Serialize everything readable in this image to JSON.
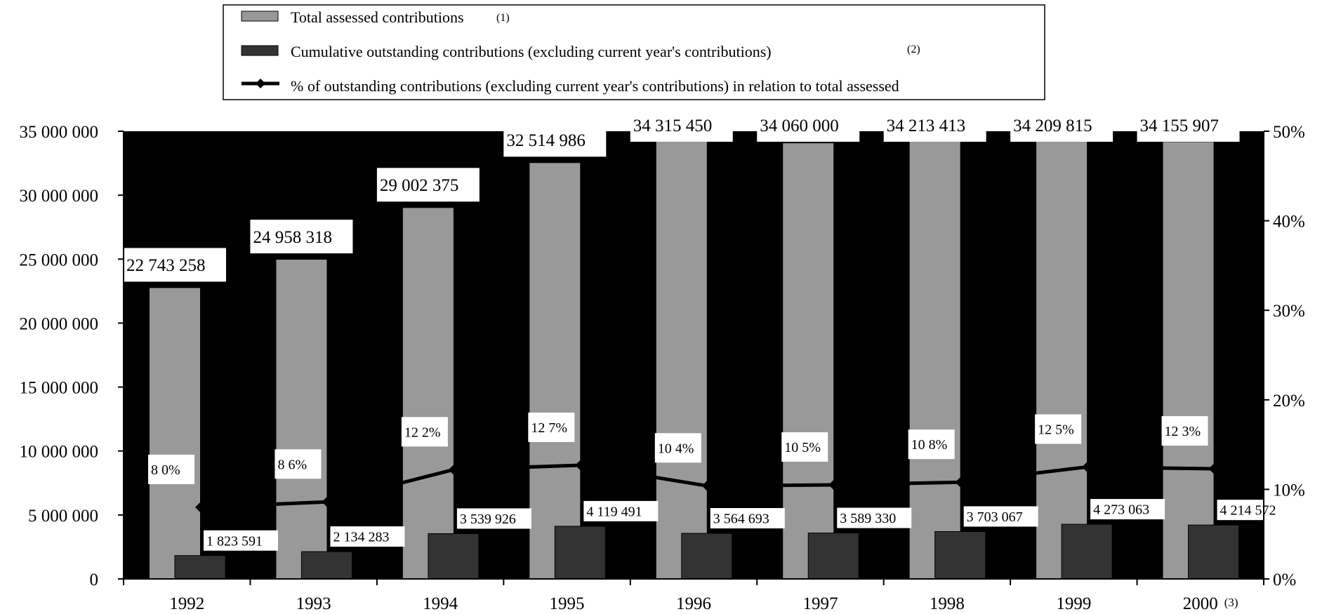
{
  "colors": {
    "plot_background": "#000000",
    "total_bar": "#999999",
    "outstanding_bar": "#333333",
    "line": "#000000",
    "label_box": "#ffffff"
  },
  "legend": {
    "items": [
      {
        "label": "Total assessed contributions",
        "note": "(1)",
        "symbol": "light-bar"
      },
      {
        "label": "Cumulative outstanding contributions (excluding current year's contributions)",
        "note": "(2)",
        "symbol": "dark-bar"
      },
      {
        "label": "% of outstanding contributions (excluding current year's contributions) in relation to total assessed",
        "note": "",
        "symbol": "line-diamond"
      }
    ]
  },
  "chart_data": {
    "type": "bar",
    "categories": [
      "1992",
      "1993",
      "1994",
      "1995",
      "1996",
      "1997",
      "1998",
      "1999",
      "2000"
    ],
    "category_notes": [
      "",
      "",
      "",
      "",
      "",
      "",
      "",
      "",
      "(3)"
    ],
    "series": [
      {
        "name": "Total assessed contributions",
        "axis": "left",
        "kind": "bar",
        "values": [
          22743258,
          24958318,
          29002375,
          32514986,
          34315450,
          34060000,
          34213413,
          34209815,
          34155907
        ],
        "labels": [
          "22 743 258",
          "24 958 318",
          "29 002 375",
          "32 514 986",
          "34 315 450",
          "34 060 000",
          "34 213 413",
          "34 209 815",
          "34 155 907"
        ]
      },
      {
        "name": "Cumulative outstanding contributions (excluding current year's contributions)",
        "axis": "left",
        "kind": "bar",
        "values": [
          1823591,
          2134283,
          3539926,
          4119491,
          3564693,
          3589330,
          3703067,
          4273063,
          4214572
        ],
        "labels": [
          "1 823 591",
          "2 134 283",
          "3 539 926",
          "4 119 491",
          "3 564 693",
          "3 589 330",
          "3 703 067",
          "4 273 063",
          "4 214 572"
        ]
      },
      {
        "name": "% of outstanding contributions (excluding current year's contributions) in relation to total assessed",
        "axis": "right",
        "kind": "line",
        "values": [
          8.0,
          8.6,
          12.2,
          12.7,
          10.4,
          10.5,
          10.8,
          12.5,
          12.3
        ],
        "labels": [
          "8 0%",
          "8 6%",
          "12 2%",
          "12 7%",
          "10 4%",
          "10 5%",
          "10 8%",
          "12 5%",
          "12 3%"
        ]
      }
    ],
    "y_left": {
      "range": [
        0,
        35000000
      ],
      "ticks": [
        0,
        5000000,
        10000000,
        15000000,
        20000000,
        25000000,
        30000000,
        35000000
      ],
      "tick_labels": [
        "0",
        "5 000 000",
        "10 000 000",
        "15 000 000",
        "20 000 000",
        "25 000 000",
        "30 000 000",
        "35 000 000"
      ]
    },
    "y_right": {
      "range": [
        0,
        50
      ],
      "ticks": [
        0,
        10,
        20,
        30,
        40,
        50
      ],
      "tick_labels": [
        "0%",
        "10%",
        "20%",
        "30%",
        "40%",
        "50%"
      ]
    },
    "grid": false,
    "legend_position": "top"
  }
}
